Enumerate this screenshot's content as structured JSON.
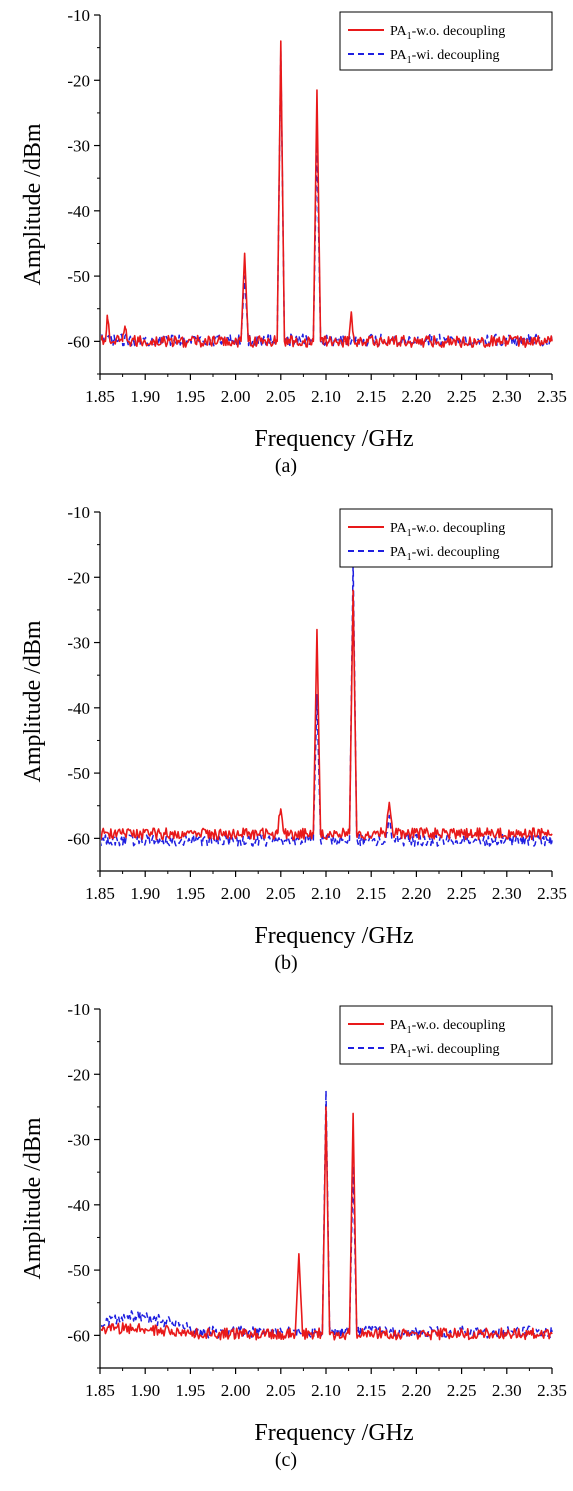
{
  "colors": {
    "series_wo": "#e8191a",
    "series_wi": "#1f1fe0",
    "axis": "#000000"
  },
  "chart_data": [
    {
      "type": "line",
      "caption": "(a)",
      "xlabel": "Frequency /GHz",
      "ylabel": "Amplitude /dBm",
      "xlim": [
        1.85,
        2.35
      ],
      "ylim": [
        -65,
        -10
      ],
      "xticks": [
        "1.85",
        "1.90",
        "1.95",
        "2.00",
        "2.05",
        "2.10",
        "2.15",
        "2.20",
        "2.25",
        "2.30",
        "2.35"
      ],
      "yticks": [
        "-10",
        "-20",
        "-30",
        "-40",
        "-50",
        "-60"
      ],
      "legend": {
        "position": "top-right",
        "entries": [
          {
            "pre": "PA",
            "sub": "1",
            "post": "-w.o. decoupling"
          },
          {
            "pre": "PA",
            "sub": "1",
            "post": "-wi. decoupling"
          }
        ]
      },
      "series": [
        {
          "name": "PA1-w.o. decoupling",
          "style": "solid",
          "floor": -60,
          "x": [
            1.85,
            1.856,
            1.858,
            1.861,
            1.875,
            1.878,
            1.881,
            2.006,
            2.01,
            2.014,
            2.046,
            2.05,
            2.054,
            2.086,
            2.09,
            2.094,
            2.125,
            2.128,
            2.131,
            2.35
          ],
          "y": [
            -60,
            -60,
            -56,
            -60,
            -60,
            -58,
            -60,
            -60,
            -46.5,
            -60,
            -60,
            -14,
            -60,
            -60,
            -21.5,
            -60,
            -60,
            -55.5,
            -60,
            -60
          ]
        },
        {
          "name": "PA1-wi. decoupling",
          "style": "dashed",
          "floor": -59.8,
          "x": [
            1.85,
            2.006,
            2.01,
            2.014,
            2.046,
            2.05,
            2.054,
            2.086,
            2.09,
            2.094,
            2.35
          ],
          "y": [
            -59.8,
            -59.8,
            -50,
            -59.8,
            -59.8,
            -15.5,
            -59.8,
            -59.8,
            -29,
            -59.8,
            -59.8
          ]
        }
      ]
    },
    {
      "type": "line",
      "caption": "(b)",
      "xlabel": "Frequency /GHz",
      "ylabel": "Amplitude /dBm",
      "xlim": [
        1.85,
        2.35
      ],
      "ylim": [
        -65,
        -10
      ],
      "xticks": [
        "1.85",
        "1.90",
        "1.95",
        "2.00",
        "2.05",
        "2.10",
        "2.15",
        "2.20",
        "2.25",
        "2.30",
        "2.35"
      ],
      "yticks": [
        "-10",
        "-20",
        "-30",
        "-40",
        "-50",
        "-60"
      ],
      "legend": {
        "position": "top-right",
        "entries": [
          {
            "pre": "PA",
            "sub": "1",
            "post": "-w.o. decoupling"
          },
          {
            "pre": "PA",
            "sub": "1",
            "post": "-wi. decoupling"
          }
        ]
      },
      "series": [
        {
          "name": "PA1-w.o. decoupling",
          "style": "solid",
          "floor": -59.3,
          "x": [
            1.85,
            2.046,
            2.05,
            2.054,
            2.086,
            2.09,
            2.094,
            2.126,
            2.13,
            2.134,
            2.166,
            2.17,
            2.174,
            2.35
          ],
          "y": [
            -59.3,
            -59.3,
            -55.5,
            -59.3,
            -59.3,
            -28,
            -59.3,
            -59.3,
            -22,
            -59.3,
            -59.3,
            -54.5,
            -59.3,
            -59.3
          ]
        },
        {
          "name": "PA1-wi. decoupling",
          "style": "dashed",
          "floor": -60.3,
          "x": [
            1.85,
            2.086,
            2.09,
            2.094,
            2.126,
            2.13,
            2.134,
            2.166,
            2.17,
            2.174,
            2.35
          ],
          "y": [
            -60.3,
            -60.3,
            -38,
            -60.3,
            -60.3,
            -17.5,
            -60.3,
            -60.3,
            -56.5,
            -60.3,
            -60.3
          ]
        }
      ]
    },
    {
      "type": "line",
      "caption": "(c)",
      "xlabel": "Frequency /GHz",
      "ylabel": "Amplitude /dBm",
      "xlim": [
        1.85,
        2.35
      ],
      "ylim": [
        -65,
        -10
      ],
      "xticks": [
        "1.85",
        "1.90",
        "1.95",
        "2.00",
        "2.05",
        "2.10",
        "2.15",
        "2.20",
        "2.25",
        "2.30",
        "2.35"
      ],
      "yticks": [
        "-10",
        "-20",
        "-30",
        "-40",
        "-50",
        "-60"
      ],
      "legend": {
        "position": "top-right",
        "entries": [
          {
            "pre": "PA",
            "sub": "1",
            "post": "-w.o. decoupling"
          },
          {
            "pre": "PA",
            "sub": "1",
            "post": "-wi. decoupling"
          }
        ]
      },
      "series": [
        {
          "name": "PA1-w.o. decoupling",
          "style": "solid",
          "floor": -59.8,
          "x": [
            1.85,
            1.9,
            1.95,
            2.066,
            2.07,
            2.074,
            2.096,
            2.1,
            2.104,
            2.126,
            2.13,
            2.134,
            2.35
          ],
          "y": [
            -59,
            -59,
            -59.8,
            -59.8,
            -47.5,
            -59.8,
            -59.8,
            -25,
            -59.8,
            -59.8,
            -26,
            -59.8,
            -59.8
          ]
        },
        {
          "name": "PA1-wi. decoupling",
          "style": "dashed",
          "floor": -59.5,
          "x": [
            1.85,
            1.88,
            1.93,
            1.96,
            2.096,
            2.1,
            2.104,
            2.126,
            2.13,
            2.134,
            2.35
          ],
          "y": [
            -58.5,
            -57,
            -58,
            -59.5,
            -59.5,
            -22.5,
            -59.5,
            -59.5,
            -34,
            -59.5,
            -59.5
          ]
        }
      ]
    }
  ]
}
